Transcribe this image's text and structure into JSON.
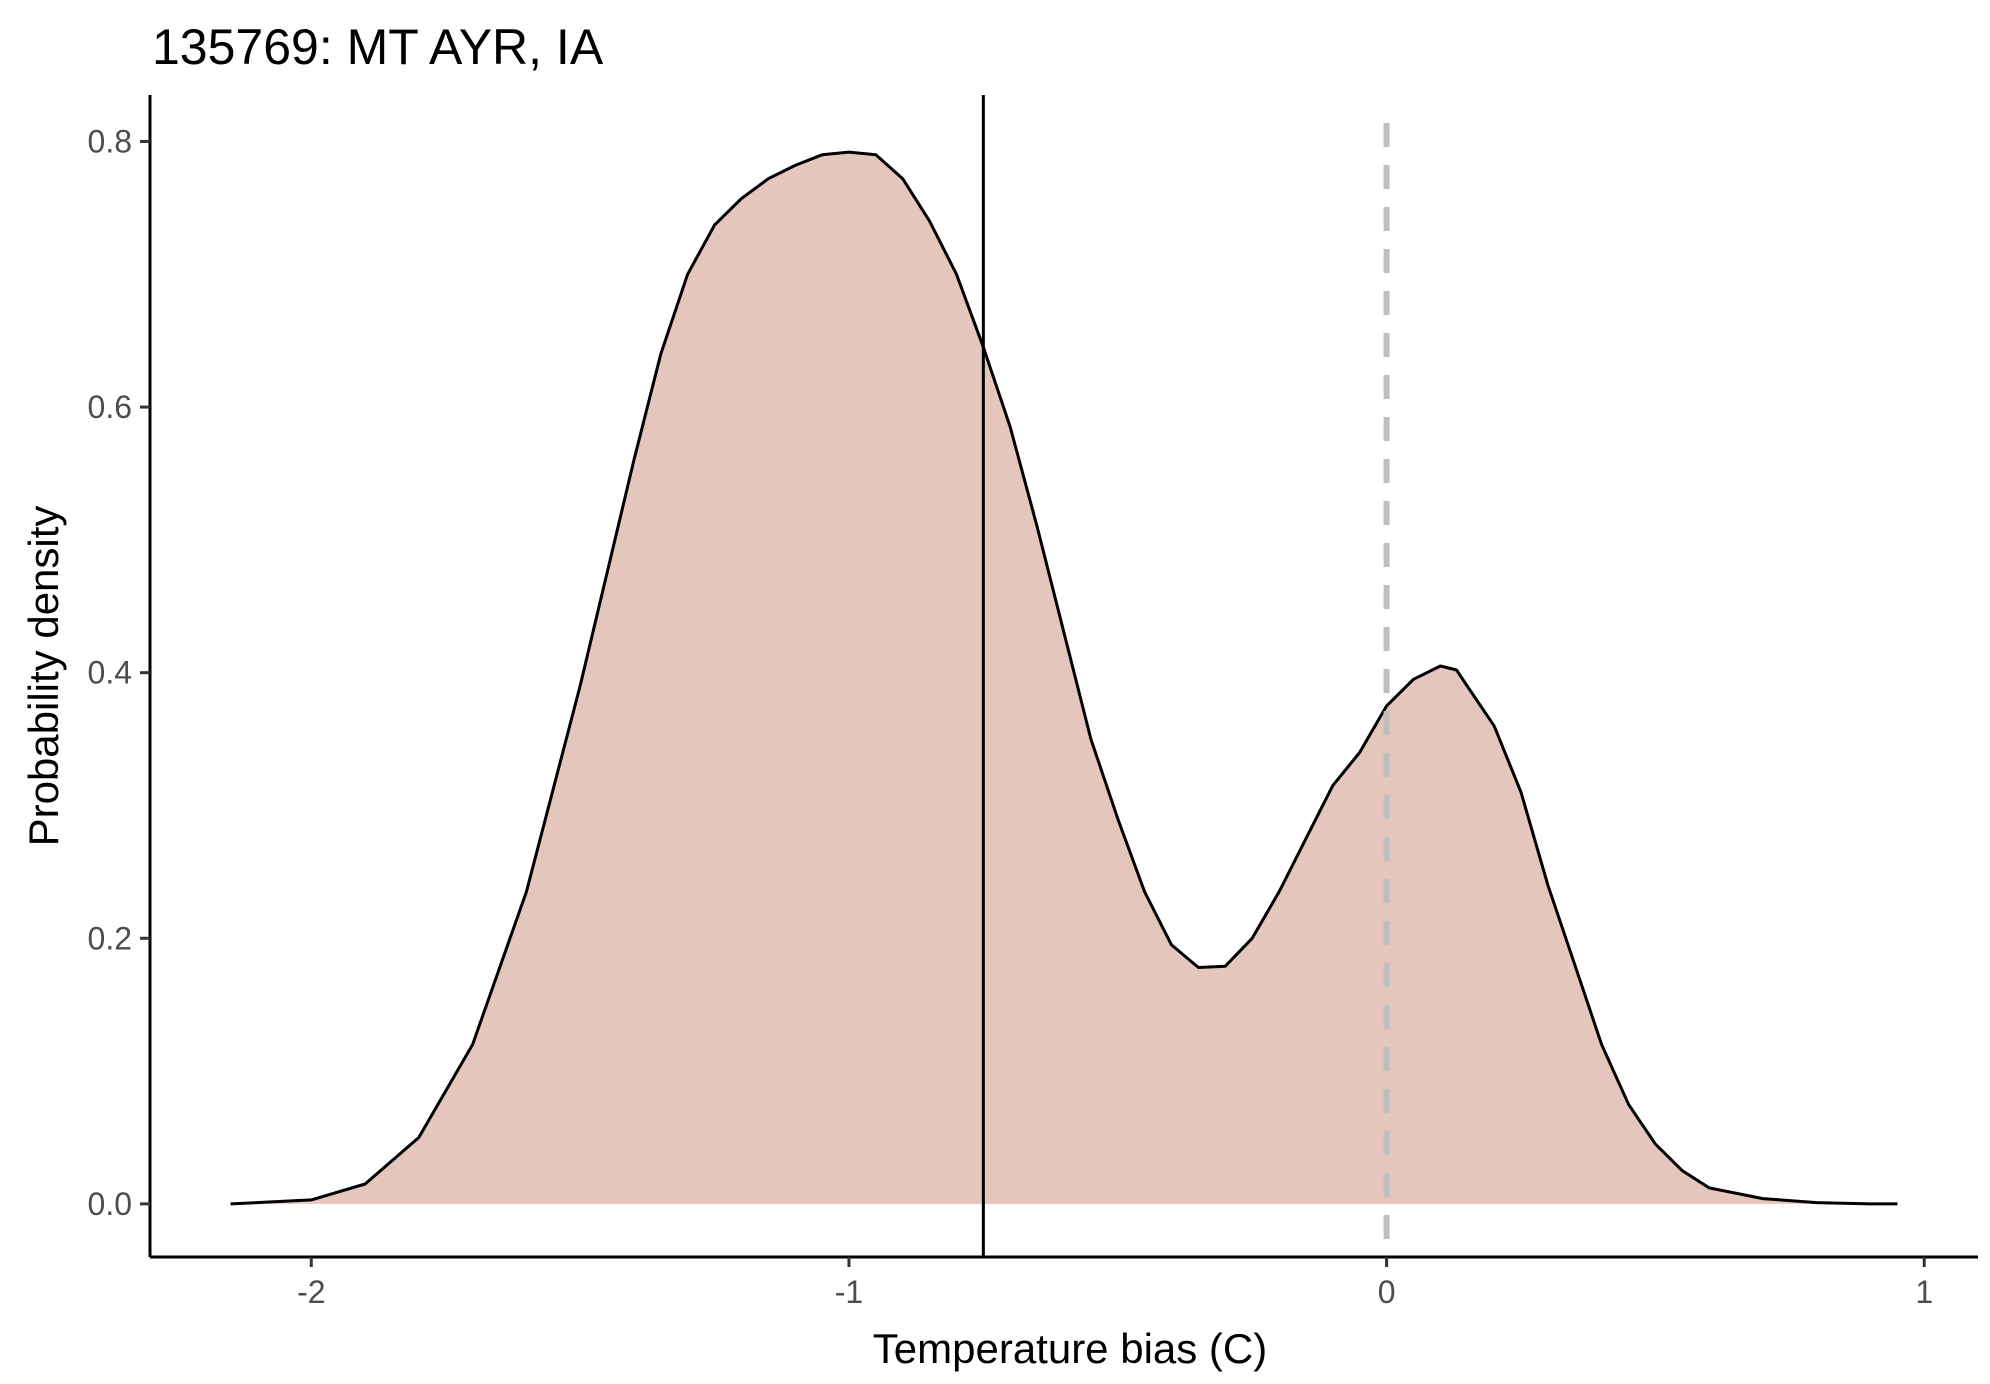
{
  "chart_data": {
    "type": "area",
    "title": "135769: MT AYR, IA",
    "xlabel": "Temperature bias (C)",
    "ylabel": "Probability density",
    "xlim": [
      -2.3,
      1.1
    ],
    "ylim": [
      -0.04,
      0.835
    ],
    "x_ticks": [
      -2,
      -1,
      0,
      1
    ],
    "x_tick_labels": [
      "-2",
      "-1",
      "0",
      "1"
    ],
    "y_ticks": [
      0.0,
      0.2,
      0.4,
      0.6,
      0.8
    ],
    "y_tick_labels": [
      "0.0",
      "0.2",
      "0.4",
      "0.6",
      "0.8"
    ],
    "grid": false,
    "fill_color": "#e4c6bd",
    "line_color": "#000000",
    "series": [
      {
        "x": [
          -2.15,
          -2.0,
          -1.9,
          -1.8,
          -1.7,
          -1.6,
          -1.5,
          -1.45,
          -1.4,
          -1.35,
          -1.3,
          -1.25,
          -1.2,
          -1.15,
          -1.1,
          -1.05,
          -1.0,
          -0.95,
          -0.9,
          -0.85,
          -0.8,
          -0.75,
          -0.7,
          -0.65,
          -0.6,
          -0.55,
          -0.5,
          -0.45,
          -0.4,
          -0.35,
          -0.3,
          -0.25,
          -0.2,
          -0.15,
          -0.1,
          -0.05,
          0.0,
          0.05,
          0.1,
          0.13,
          0.15,
          0.2,
          0.25,
          0.3,
          0.35,
          0.4,
          0.45,
          0.5,
          0.55,
          0.6,
          0.7,
          0.8,
          0.9,
          0.95
        ],
        "y": [
          0.0,
          0.003,
          0.015,
          0.05,
          0.12,
          0.235,
          0.39,
          0.475,
          0.56,
          0.64,
          0.7,
          0.737,
          0.757,
          0.772,
          0.782,
          0.79,
          0.792,
          0.79,
          0.772,
          0.74,
          0.7,
          0.645,
          0.585,
          0.51,
          0.43,
          0.35,
          0.29,
          0.235,
          0.195,
          0.178,
          0.179,
          0.2,
          0.235,
          0.275,
          0.315,
          0.34,
          0.375,
          0.395,
          0.405,
          0.402,
          0.39,
          0.36,
          0.31,
          0.24,
          0.18,
          0.12,
          0.075,
          0.045,
          0.025,
          0.012,
          0.004,
          0.001,
          0.0,
          0.0
        ]
      }
    ],
    "reference_lines": [
      {
        "x": -0.75,
        "style": "solid",
        "color": "#000000"
      },
      {
        "x": 0.0,
        "style": "dashed",
        "color": "#bebebe"
      }
    ]
  }
}
